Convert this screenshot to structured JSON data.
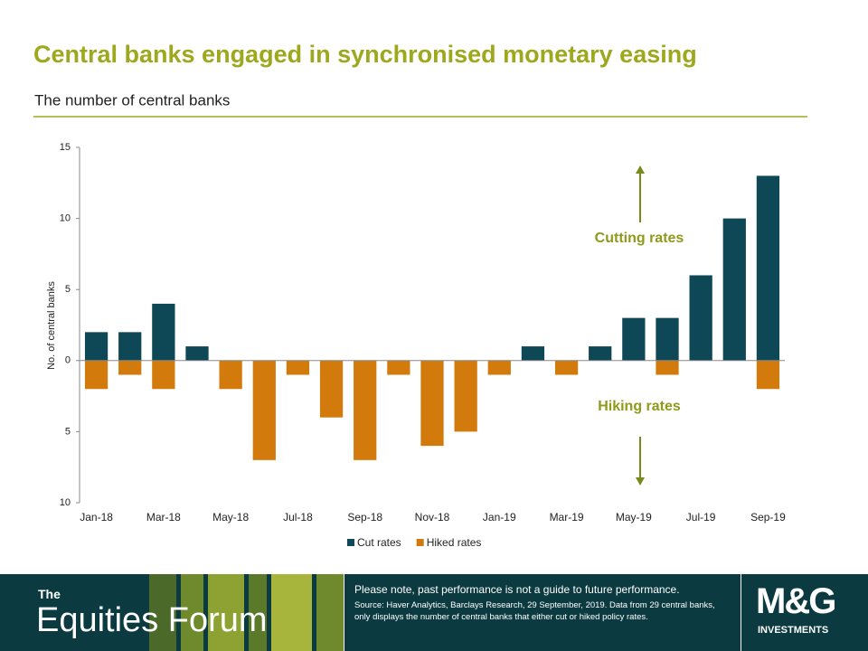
{
  "chart_data": {
    "type": "bar",
    "title": "Central banks engaged in synchronised monetary easing",
    "subtitle": "The number of central banks",
    "y_label": "No. of central banks",
    "categories": [
      "Jan-18",
      null,
      "Mar-18",
      null,
      "May-18",
      null,
      "Jul-18",
      null,
      "Sep-18",
      null,
      "Nov-18",
      null,
      "Jan-19",
      null,
      "Mar-19",
      null,
      "May-19",
      null,
      "Jul-19",
      null,
      "Sep-19"
    ],
    "series": [
      {
        "name": "Cut rates",
        "color": "#0e4756",
        "values": [
          2,
          2,
          4,
          1,
          0,
          0,
          0,
          0,
          0,
          0,
          0,
          0,
          0,
          1,
          0,
          1,
          3,
          3,
          6,
          10,
          13
        ]
      },
      {
        "name": "Hiked rates",
        "color": "#d27a0c",
        "values": [
          -2,
          -1,
          -2,
          0,
          -2,
          -7,
          -1,
          -4,
          -7,
          -1,
          -6,
          -5,
          -1,
          0,
          -1,
          0,
          0,
          -1,
          0,
          0,
          -2
        ]
      }
    ],
    "ylim": [
      -10,
      15
    ],
    "yticks": [
      {
        "value": -10,
        "label": "10"
      },
      {
        "value": -5,
        "label": "5"
      },
      0,
      5,
      10,
      15
    ],
    "annotations": [
      "Cutting rates",
      "Hiking rates"
    ],
    "legend": "bottom"
  },
  "footer": {
    "brand_small": "The",
    "brand": "Equities Forum",
    "disclaimer": "Please note, past performance  is not a guide to future performance.",
    "source": "Source: Haver Analytics, Barclays Research, 29 September, 2019. Data from 29 central banks, only displays the number of central banks that either cut or hiked policy rates.",
    "logo": "M&G",
    "logo_sub": "INVESTMENTS"
  }
}
